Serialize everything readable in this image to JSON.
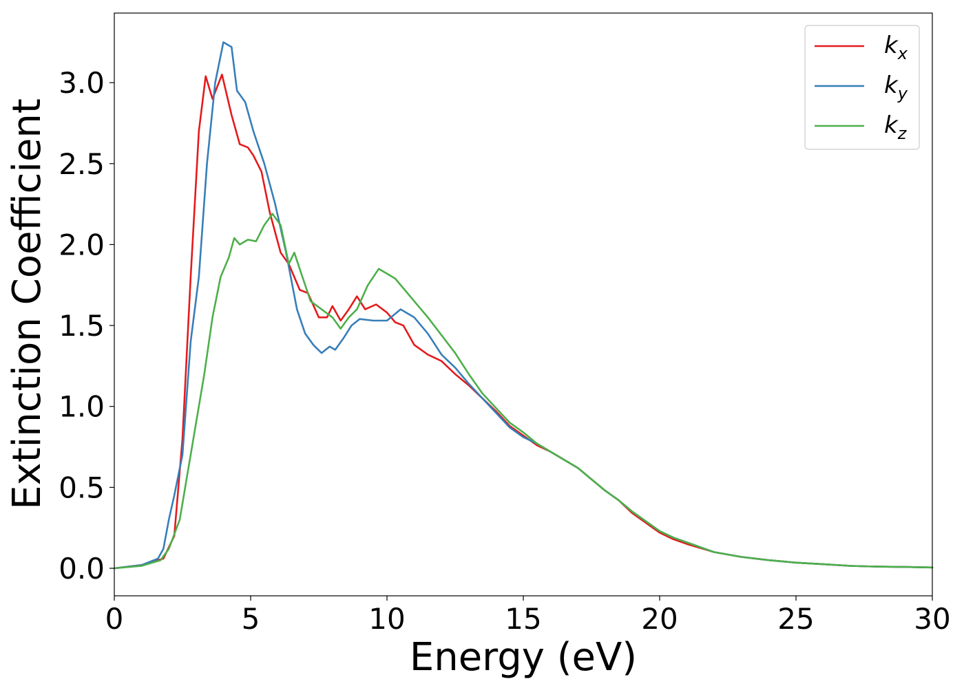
{
  "chart_data": {
    "type": "line",
    "title": "",
    "xlabel": "Energy (eV)",
    "ylabel": "Extinction Coefficient",
    "xlim": [
      0,
      30
    ],
    "ylim": [
      -0.17,
      3.43
    ],
    "xticks": [
      0,
      5,
      10,
      15,
      20,
      25,
      30
    ],
    "xtick_labels": [
      "0",
      "5",
      "10",
      "15",
      "20",
      "25",
      "30"
    ],
    "yticks": [
      0.0,
      0.5,
      1.0,
      1.5,
      2.0,
      2.5,
      3.0
    ],
    "ytick_labels": [
      "0.0",
      "0.5",
      "1.0",
      "1.5",
      "2.0",
      "2.5",
      "3.0"
    ],
    "grid": false,
    "legend_position": "top-right",
    "series": [
      {
        "name": "k",
        "subscript": "x",
        "color": "#e41a1c",
        "points": [
          [
            0,
            0
          ],
          [
            1,
            0.02
          ],
          [
            1.8,
            0.06
          ],
          [
            2.2,
            0.2
          ],
          [
            2.5,
            0.8
          ],
          [
            2.8,
            1.8
          ],
          [
            3.1,
            2.7
          ],
          [
            3.35,
            3.04
          ],
          [
            3.6,
            2.9
          ],
          [
            3.95,
            3.05
          ],
          [
            4.3,
            2.8
          ],
          [
            4.6,
            2.62
          ],
          [
            4.9,
            2.6
          ],
          [
            5.1,
            2.55
          ],
          [
            5.4,
            2.45
          ],
          [
            5.7,
            2.2
          ],
          [
            6.1,
            1.95
          ],
          [
            6.4,
            1.88
          ],
          [
            6.8,
            1.72
          ],
          [
            7.1,
            1.7
          ],
          [
            7.5,
            1.55
          ],
          [
            7.8,
            1.55
          ],
          [
            8.0,
            1.62
          ],
          [
            8.3,
            1.53
          ],
          [
            8.6,
            1.6
          ],
          [
            8.9,
            1.68
          ],
          [
            9.2,
            1.6
          ],
          [
            9.6,
            1.63
          ],
          [
            10.0,
            1.58
          ],
          [
            10.3,
            1.52
          ],
          [
            10.6,
            1.5
          ],
          [
            11.0,
            1.38
          ],
          [
            11.5,
            1.32
          ],
          [
            12.0,
            1.28
          ],
          [
            12.5,
            1.2
          ],
          [
            13.0,
            1.13
          ],
          [
            13.5,
            1.05
          ],
          [
            14.0,
            0.97
          ],
          [
            14.5,
            0.88
          ],
          [
            15.0,
            0.82
          ],
          [
            15.5,
            0.76
          ],
          [
            16.0,
            0.72
          ],
          [
            16.5,
            0.67
          ],
          [
            17.0,
            0.62
          ],
          [
            17.5,
            0.55
          ],
          [
            18.0,
            0.48
          ],
          [
            18.5,
            0.42
          ],
          [
            19.0,
            0.34
          ],
          [
            19.5,
            0.28
          ],
          [
            20.0,
            0.22
          ],
          [
            20.5,
            0.18
          ],
          [
            21.0,
            0.15
          ],
          [
            22.0,
            0.1
          ],
          [
            23.0,
            0.07
          ],
          [
            24.0,
            0.05
          ],
          [
            25.0,
            0.035
          ],
          [
            26.0,
            0.025
          ],
          [
            27.0,
            0.015
          ],
          [
            28.0,
            0.01
          ],
          [
            29.0,
            0.008
          ],
          [
            30.0,
            0.005
          ]
        ]
      },
      {
        "name": "k",
        "subscript": "y",
        "color": "#377eb8",
        "points": [
          [
            0,
            0
          ],
          [
            1,
            0.02
          ],
          [
            1.6,
            0.06
          ],
          [
            1.8,
            0.12
          ],
          [
            2.0,
            0.3
          ],
          [
            2.2,
            0.45
          ],
          [
            2.5,
            0.7
          ],
          [
            2.8,
            1.4
          ],
          [
            3.1,
            1.8
          ],
          [
            3.4,
            2.5
          ],
          [
            3.7,
            3.0
          ],
          [
            4.0,
            3.25
          ],
          [
            4.3,
            3.22
          ],
          [
            4.5,
            2.95
          ],
          [
            4.8,
            2.88
          ],
          [
            5.1,
            2.7
          ],
          [
            5.5,
            2.5
          ],
          [
            5.9,
            2.25
          ],
          [
            6.3,
            1.95
          ],
          [
            6.7,
            1.6
          ],
          [
            7.0,
            1.45
          ],
          [
            7.3,
            1.38
          ],
          [
            7.6,
            1.33
          ],
          [
            7.9,
            1.37
          ],
          [
            8.1,
            1.35
          ],
          [
            8.4,
            1.42
          ],
          [
            8.7,
            1.5
          ],
          [
            9.0,
            1.54
          ],
          [
            9.5,
            1.53
          ],
          [
            10.0,
            1.53
          ],
          [
            10.5,
            1.6
          ],
          [
            11.0,
            1.55
          ],
          [
            11.5,
            1.45
          ],
          [
            12.0,
            1.32
          ],
          [
            12.5,
            1.24
          ],
          [
            13.0,
            1.14
          ],
          [
            13.5,
            1.05
          ],
          [
            14.0,
            0.96
          ],
          [
            14.5,
            0.87
          ],
          [
            15.0,
            0.81
          ],
          [
            15.5,
            0.77
          ],
          [
            16.0,
            0.72
          ],
          [
            16.5,
            0.67
          ],
          [
            17.0,
            0.62
          ],
          [
            17.5,
            0.55
          ],
          [
            18.0,
            0.48
          ],
          [
            18.5,
            0.42
          ],
          [
            19.0,
            0.35
          ],
          [
            19.5,
            0.29
          ],
          [
            20.0,
            0.23
          ],
          [
            20.5,
            0.19
          ],
          [
            21.0,
            0.16
          ],
          [
            22.0,
            0.1
          ],
          [
            23.0,
            0.07
          ],
          [
            24.0,
            0.05
          ],
          [
            25.0,
            0.035
          ],
          [
            26.0,
            0.025
          ],
          [
            27.0,
            0.015
          ],
          [
            28.0,
            0.01
          ],
          [
            29.0,
            0.008
          ],
          [
            30.0,
            0.005
          ]
        ]
      },
      {
        "name": "k",
        "subscript": "z",
        "color": "#4daf4a",
        "points": [
          [
            0,
            0
          ],
          [
            1,
            0.015
          ],
          [
            1.7,
            0.05
          ],
          [
            2.0,
            0.12
          ],
          [
            2.4,
            0.3
          ],
          [
            2.7,
            0.6
          ],
          [
            3.0,
            0.9
          ],
          [
            3.3,
            1.2
          ],
          [
            3.6,
            1.55
          ],
          [
            3.9,
            1.8
          ],
          [
            4.2,
            1.92
          ],
          [
            4.4,
            2.04
          ],
          [
            4.6,
            2.0
          ],
          [
            4.9,
            2.03
          ],
          [
            5.2,
            2.02
          ],
          [
            5.5,
            2.12
          ],
          [
            5.8,
            2.19
          ],
          [
            6.1,
            2.12
          ],
          [
            6.4,
            1.88
          ],
          [
            6.6,
            1.95
          ],
          [
            6.9,
            1.8
          ],
          [
            7.2,
            1.65
          ],
          [
            7.6,
            1.6
          ],
          [
            8.0,
            1.55
          ],
          [
            8.3,
            1.48
          ],
          [
            8.6,
            1.55
          ],
          [
            8.9,
            1.6
          ],
          [
            9.3,
            1.75
          ],
          [
            9.7,
            1.85
          ],
          [
            10.0,
            1.82
          ],
          [
            10.3,
            1.79
          ],
          [
            10.6,
            1.73
          ],
          [
            11.0,
            1.65
          ],
          [
            11.5,
            1.55
          ],
          [
            12.0,
            1.44
          ],
          [
            12.5,
            1.33
          ],
          [
            13.0,
            1.2
          ],
          [
            13.5,
            1.08
          ],
          [
            14.0,
            0.99
          ],
          [
            14.5,
            0.9
          ],
          [
            15.0,
            0.84
          ],
          [
            15.5,
            0.77
          ],
          [
            16.0,
            0.72
          ],
          [
            16.5,
            0.67
          ],
          [
            17.0,
            0.62
          ],
          [
            17.5,
            0.55
          ],
          [
            18.0,
            0.48
          ],
          [
            18.5,
            0.42
          ],
          [
            19.0,
            0.35
          ],
          [
            19.5,
            0.29
          ],
          [
            20.0,
            0.23
          ],
          [
            20.5,
            0.19
          ],
          [
            21.0,
            0.16
          ],
          [
            22.0,
            0.1
          ],
          [
            23.0,
            0.07
          ],
          [
            24.0,
            0.05
          ],
          [
            25.0,
            0.035
          ],
          [
            26.0,
            0.025
          ],
          [
            27.0,
            0.015
          ],
          [
            28.0,
            0.01
          ],
          [
            29.0,
            0.008
          ],
          [
            30.0,
            0.005
          ]
        ]
      }
    ]
  }
}
